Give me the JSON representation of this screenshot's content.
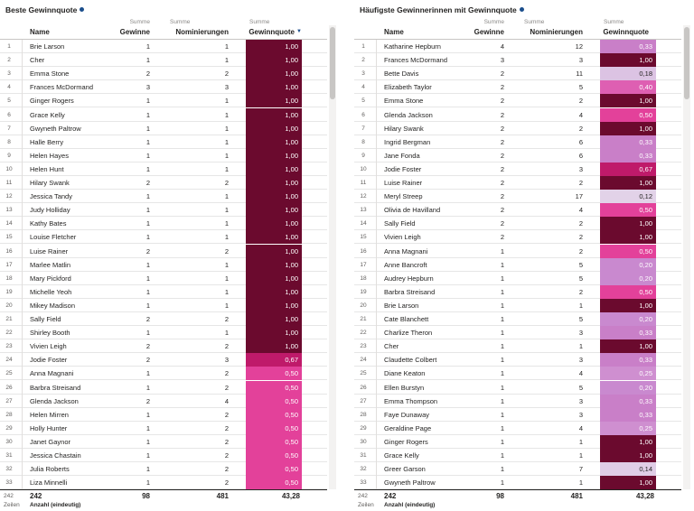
{
  "panels": [
    {
      "title": "Beste Gewinnquote",
      "headers": {
        "name": "Name",
        "wins_top": "Summe",
        "wins": "Gewinne",
        "noms_top": "Summe",
        "noms": "Nominierungen",
        "quote_top": "Summe",
        "quote": "Gewinnquote"
      },
      "sort_icon": "sort-descending-icon",
      "rows": [
        [
          "1",
          "Brie Larson",
          "1",
          "1",
          "1,00"
        ],
        [
          "2",
          "Cher",
          "1",
          "1",
          "1,00"
        ],
        [
          "3",
          "Emma Stone",
          "2",
          "2",
          "1,00"
        ],
        [
          "4",
          "Frances McDormand",
          "3",
          "3",
          "1,00"
        ],
        [
          "5",
          "Ginger Rogers",
          "1",
          "1",
          "1,00"
        ],
        [
          "6",
          "Grace Kelly",
          "1",
          "1",
          "1,00"
        ],
        [
          "7",
          "Gwyneth Paltrow",
          "1",
          "1",
          "1,00"
        ],
        [
          "8",
          "Halle Berry",
          "1",
          "1",
          "1,00"
        ],
        [
          "9",
          "Helen Hayes",
          "1",
          "1",
          "1,00"
        ],
        [
          "10",
          "Helen Hunt",
          "1",
          "1",
          "1,00"
        ],
        [
          "11",
          "Hilary Swank",
          "2",
          "2",
          "1,00"
        ],
        [
          "12",
          "Jessica Tandy",
          "1",
          "1",
          "1,00"
        ],
        [
          "13",
          "Judy Holliday",
          "1",
          "1",
          "1,00"
        ],
        [
          "14",
          "Kathy Bates",
          "1",
          "1",
          "1,00"
        ],
        [
          "15",
          "Louise Fletcher",
          "1",
          "1",
          "1,00"
        ],
        [
          "16",
          "Luise Rainer",
          "2",
          "2",
          "1,00"
        ],
        [
          "17",
          "Marlee Matlin",
          "1",
          "1",
          "1,00"
        ],
        [
          "18",
          "Mary Pickford",
          "1",
          "1",
          "1,00"
        ],
        [
          "19",
          "Michelle Yeoh",
          "1",
          "1",
          "1,00"
        ],
        [
          "20",
          "Mikey Madison",
          "1",
          "1",
          "1,00"
        ],
        [
          "21",
          "Sally Field",
          "2",
          "2",
          "1,00"
        ],
        [
          "22",
          "Shirley Booth",
          "1",
          "1",
          "1,00"
        ],
        [
          "23",
          "Vivien Leigh",
          "2",
          "2",
          "1,00"
        ],
        [
          "24",
          "Jodie Foster",
          "2",
          "3",
          "0,67"
        ],
        [
          "25",
          "Anna Magnani",
          "1",
          "2",
          "0,50"
        ],
        [
          "26",
          "Barbra Streisand",
          "1",
          "2",
          "0,50"
        ],
        [
          "27",
          "Glenda Jackson",
          "2",
          "4",
          "0,50"
        ],
        [
          "28",
          "Helen Mirren",
          "1",
          "2",
          "0,50"
        ],
        [
          "29",
          "Holly Hunter",
          "1",
          "2",
          "0,50"
        ],
        [
          "30",
          "Janet Gaynor",
          "1",
          "2",
          "0,50"
        ],
        [
          "31",
          "Jessica Chastain",
          "1",
          "2",
          "0,50"
        ],
        [
          "32",
          "Julia Roberts",
          "1",
          "2",
          "0,50"
        ],
        [
          "33",
          "Liza Minnelli",
          "1",
          "2",
          "0,50"
        ]
      ],
      "footer": {
        "count": "242",
        "count_label": "Zeilen",
        "name_total": "242",
        "name_label": "Anzahl (eindeutig)",
        "wins_total": "98",
        "noms_total": "481",
        "quote_total": "43,28"
      }
    },
    {
      "title": "Häufigste Gewinnerinnen mit Gewinnquote",
      "headers": {
        "name": "Name",
        "wins_top": "Summe",
        "wins": "Gewinne",
        "noms_top": "Summe",
        "noms": "Nominierungen",
        "quote_top": "Summe",
        "quote": "Gewinnquote"
      },
      "rows": [
        [
          "1",
          "Katharine Hepburn",
          "4",
          "12",
          "0,33"
        ],
        [
          "2",
          "Frances McDormand",
          "3",
          "3",
          "1,00"
        ],
        [
          "3",
          "Bette Davis",
          "2",
          "11",
          "0,18"
        ],
        [
          "4",
          "Elizabeth Taylor",
          "2",
          "5",
          "0,40"
        ],
        [
          "5",
          "Emma Stone",
          "2",
          "2",
          "1,00"
        ],
        [
          "6",
          "Glenda Jackson",
          "2",
          "4",
          "0,50"
        ],
        [
          "7",
          "Hilary Swank",
          "2",
          "2",
          "1,00"
        ],
        [
          "8",
          "Ingrid Bergman",
          "2",
          "6",
          "0,33"
        ],
        [
          "9",
          "Jane Fonda",
          "2",
          "6",
          "0,33"
        ],
        [
          "10",
          "Jodie Foster",
          "2",
          "3",
          "0,67"
        ],
        [
          "11",
          "Luise Rainer",
          "2",
          "2",
          "1,00"
        ],
        [
          "12",
          "Meryl Streep",
          "2",
          "17",
          "0,12"
        ],
        [
          "13",
          "Olivia de Havilland",
          "2",
          "4",
          "0,50"
        ],
        [
          "14",
          "Sally Field",
          "2",
          "2",
          "1,00"
        ],
        [
          "15",
          "Vivien Leigh",
          "2",
          "2",
          "1,00"
        ],
        [
          "16",
          "Anna Magnani",
          "1",
          "2",
          "0,50"
        ],
        [
          "17",
          "Anne Bancroft",
          "1",
          "5",
          "0,20"
        ],
        [
          "18",
          "Audrey Hepburn",
          "1",
          "5",
          "0,20"
        ],
        [
          "19",
          "Barbra Streisand",
          "1",
          "2",
          "0,50"
        ],
        [
          "20",
          "Brie Larson",
          "1",
          "1",
          "1,00"
        ],
        [
          "21",
          "Cate Blanchett",
          "1",
          "5",
          "0,20"
        ],
        [
          "22",
          "Charlize Theron",
          "1",
          "3",
          "0,33"
        ],
        [
          "23",
          "Cher",
          "1",
          "1",
          "1,00"
        ],
        [
          "24",
          "Claudette Colbert",
          "1",
          "3",
          "0,33"
        ],
        [
          "25",
          "Diane Keaton",
          "1",
          "4",
          "0,25"
        ],
        [
          "26",
          "Ellen Burstyn",
          "1",
          "5",
          "0,20"
        ],
        [
          "27",
          "Emma Thompson",
          "1",
          "3",
          "0,33"
        ],
        [
          "28",
          "Faye Dunaway",
          "1",
          "3",
          "0,33"
        ],
        [
          "29",
          "Geraldine Page",
          "1",
          "4",
          "0,25"
        ],
        [
          "30",
          "Ginger Rogers",
          "1",
          "1",
          "1,00"
        ],
        [
          "31",
          "Grace Kelly",
          "1",
          "1",
          "1,00"
        ],
        [
          "32",
          "Greer Garson",
          "1",
          "7",
          "0,14"
        ],
        [
          "33",
          "Gwyneth Paltrow",
          "1",
          "1",
          "1,00"
        ]
      ],
      "footer": {
        "count": "242",
        "count_label": "Zeilen",
        "name_total": "242",
        "name_label": "Anzahl (eindeutig)",
        "wins_total": "98",
        "noms_total": "481",
        "quote_total": "43,28"
      }
    }
  ],
  "quote_colors": {
    "1,00": "#6b0a2e",
    "0,67": "#bf1a6a",
    "0,50": "#e3419a",
    "0,40": "#de5fb2",
    "0,33": "#c97fc8",
    "0,25": "#cf8fd0",
    "0,20": "#c989cf",
    "0,18": "#dcc3e3",
    "0,14": "#e0cde6",
    "0,12": "#e2d2e8"
  },
  "quote_text_dark": [
    "0,18",
    "0,14",
    "0,12"
  ]
}
